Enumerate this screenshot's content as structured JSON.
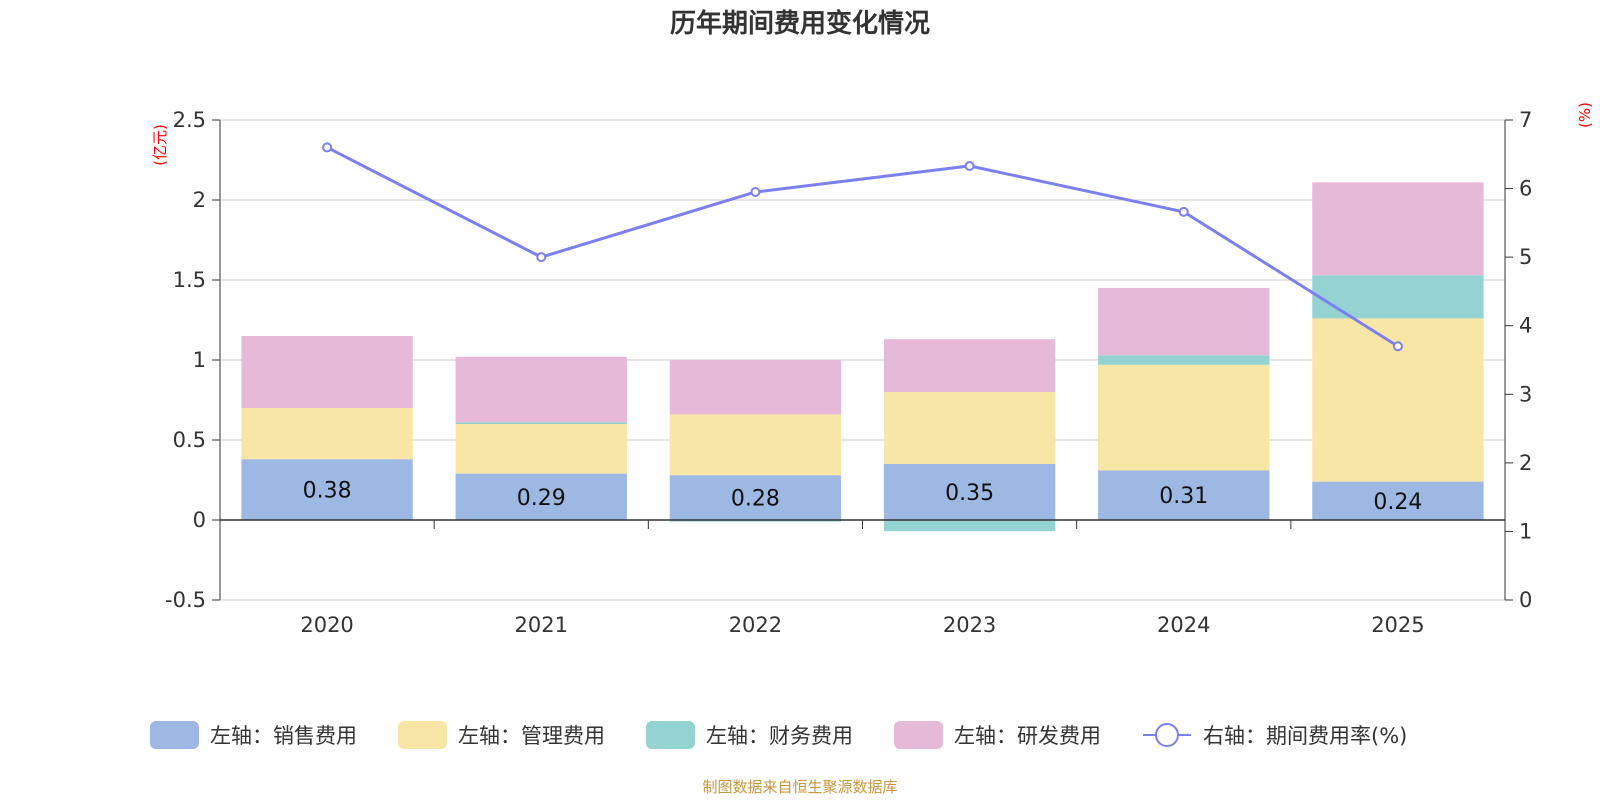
{
  "colors": {
    "sales": "#9db8e3",
    "admin": "#f8e6a6",
    "finance": "#95d3d3",
    "rnd": "#e7b9d9",
    "rate": "#7b7ff0",
    "unit_red": "#ff0000",
    "source": "#c8963c"
  },
  "chart_data": {
    "type": "bar",
    "title": "历年期间费用变化情况",
    "categories": [
      "2020",
      "2021",
      "2022",
      "2023",
      "2024",
      "2025"
    ],
    "left_axis": {
      "unit": "(亿元)",
      "ylim": [
        -0.5,
        2.5
      ],
      "ticks": [
        "2.5",
        "2",
        "1.5",
        "1",
        "0.5",
        "0",
        "-0.5"
      ]
    },
    "right_axis": {
      "unit": "(%)",
      "ylim": [
        0,
        7
      ],
      "ticks": [
        "7",
        "6",
        "5",
        "4",
        "3",
        "2",
        "1",
        "0"
      ]
    },
    "series": [
      {
        "name": "左轴：销售费用",
        "key": "sales",
        "axis": "left",
        "type": "bar",
        "values": [
          0.38,
          0.29,
          0.28,
          0.35,
          0.31,
          0.24
        ],
        "labels": [
          "0.38",
          "0.29",
          "0.28",
          "0.35",
          "0.31",
          "0.24"
        ]
      },
      {
        "name": "左轴：管理费用",
        "key": "admin",
        "axis": "left",
        "type": "bar",
        "values": [
          0.32,
          0.31,
          0.38,
          0.45,
          0.66,
          1.02
        ]
      },
      {
        "name": "左轴：财务费用",
        "key": "finance",
        "axis": "left",
        "type": "bar",
        "values": [
          0.0,
          0.01,
          -0.01,
          -0.07,
          0.06,
          0.27
        ]
      },
      {
        "name": "左轴：研发费用",
        "key": "rnd",
        "axis": "left",
        "type": "bar",
        "values": [
          0.45,
          0.41,
          0.34,
          0.33,
          0.42,
          0.58
        ]
      },
      {
        "name": "右轴：期间费用率(%)",
        "key": "rate",
        "axis": "right",
        "type": "line",
        "values": [
          6.6,
          5.0,
          5.95,
          6.33,
          5.66,
          3.7
        ]
      }
    ],
    "source": "制图数据来自恒生聚源数据库"
  }
}
